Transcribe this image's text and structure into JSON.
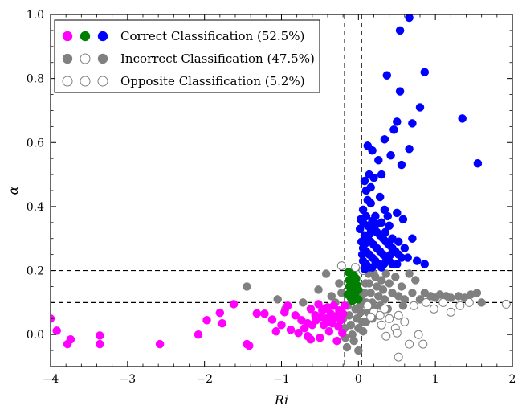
{
  "chart_data": {
    "type": "scatter",
    "xlabel": "Ri",
    "ylabel": "α",
    "xlim": [
      -4,
      2
    ],
    "ylim": [
      -0.1,
      1.0
    ],
    "xticks": [
      "−4",
      "−3",
      "−2",
      "−1",
      "0",
      "1",
      "2"
    ],
    "yticks": [
      "0.0",
      "0.2",
      "0.4",
      "0.6",
      "0.8",
      "1.0"
    ],
    "xtick_values": [
      -4,
      -3,
      -2,
      -1,
      0,
      1,
      2
    ],
    "ytick_values": [
      0.0,
      0.2,
      0.4,
      0.6,
      0.8,
      1.0
    ],
    "reference_lines": {
      "vertical_x": [
        -0.18,
        0.04
      ],
      "horizontal_y": [
        0.1,
        0.2
      ],
      "style": "dashed"
    },
    "legend": {
      "placement": "top-left",
      "entries": [
        {
          "label": "Correct Classification (52.5%)",
          "markers": [
            "magenta-filled",
            "green-filled",
            "blue-filled"
          ]
        },
        {
          "label": "Incorrect Classification (47.5%)",
          "markers": [
            "gray-filled",
            "gray-open",
            "gray-filled"
          ]
        },
        {
          "label": "Opposite Classification (5.2%)",
          "markers": [
            "gray-open",
            "gray-open",
            "gray-open"
          ]
        }
      ]
    },
    "colors": {
      "magenta": "#ff00ff",
      "green": "#007f00",
      "blue": "#0000ff",
      "gray": "#808080"
    },
    "series": [
      {
        "color_key": "magenta",
        "filled": true,
        "points": [
          [
            -4.0,
            0.05
          ],
          [
            -3.92,
            0.012
          ],
          [
            -3.78,
            -0.03
          ],
          [
            -3.74,
            -0.015
          ],
          [
            -3.36,
            -0.003
          ],
          [
            -3.36,
            -0.03
          ],
          [
            -2.58,
            -0.03
          ],
          [
            -2.08,
            0.0
          ],
          [
            -1.97,
            0.045
          ],
          [
            -1.8,
            0.068
          ],
          [
            -1.77,
            0.035
          ],
          [
            -1.62,
            0.095
          ],
          [
            -1.45,
            -0.03
          ],
          [
            -1.42,
            -0.035
          ],
          [
            -1.32,
            0.066
          ],
          [
            -1.22,
            0.065
          ],
          [
            -1.12,
            0.047
          ],
          [
            -1.07,
            0.01
          ],
          [
            -1.0,
            0.03
          ],
          [
            -0.96,
            0.07
          ],
          [
            -0.92,
            0.09
          ],
          [
            -0.88,
            0.015
          ],
          [
            -0.82,
            0.06
          ],
          [
            -0.78,
            0.005
          ],
          [
            -0.74,
            0.045
          ],
          [
            -0.7,
            0.02
          ],
          [
            -0.66,
            -0.005
          ],
          [
            -0.62,
            0.08
          ],
          [
            -0.6,
            0.03
          ],
          [
            -0.56,
            0.06
          ],
          [
            -0.52,
            0.095
          ],
          [
            -0.5,
            -0.01
          ],
          [
            -0.47,
            0.075
          ],
          [
            -0.45,
            0.03
          ],
          [
            -0.42,
            0.05
          ],
          [
            -0.4,
            0.085
          ],
          [
            -0.38,
            0.01
          ],
          [
            -0.36,
            0.065
          ],
          [
            -0.34,
            0.035
          ],
          [
            -0.32,
            0.09
          ],
          [
            -0.3,
            0.055
          ],
          [
            -0.28,
            -0.02
          ],
          [
            -0.26,
            0.025
          ],
          [
            -0.25,
            0.075
          ],
          [
            -0.23,
            0.045
          ],
          [
            -0.21,
            0.005
          ],
          [
            -0.2,
            0.065
          ],
          [
            -0.18,
            0.09
          ],
          [
            -0.55,
            0.045
          ],
          [
            -0.62,
            -0.015
          ],
          [
            -0.48,
            0.055
          ],
          [
            -0.37,
            0.04
          ],
          [
            -0.27,
            0.06
          ],
          [
            -0.44,
            0.08
          ],
          [
            -0.66,
            0.035
          ]
        ]
      },
      {
        "color_key": "green",
        "filled": true,
        "points": [
          [
            -0.13,
            0.195
          ],
          [
            -0.12,
            0.17
          ],
          [
            -0.12,
            0.15
          ],
          [
            -0.1,
            0.135
          ],
          [
            -0.09,
            0.12
          ],
          [
            -0.08,
            0.105
          ],
          [
            -0.06,
            0.185
          ],
          [
            -0.05,
            0.165
          ],
          [
            -0.03,
            0.175
          ],
          [
            -0.02,
            0.155
          ],
          [
            0.0,
            0.14
          ],
          [
            -0.04,
            0.13
          ],
          [
            -0.1,
            0.115
          ],
          [
            -0.07,
            0.145
          ],
          [
            0.0,
            0.11
          ],
          [
            -0.14,
            0.125
          ]
        ]
      },
      {
        "color_key": "blue",
        "filled": true,
        "points": [
          [
            0.66,
            0.99
          ],
          [
            0.54,
            0.95
          ],
          [
            0.37,
            0.81
          ],
          [
            0.86,
            0.82
          ],
          [
            0.54,
            0.76
          ],
          [
            0.8,
            0.71
          ],
          [
            0.7,
            0.66
          ],
          [
            1.35,
            0.675
          ],
          [
            1.55,
            0.535
          ],
          [
            0.5,
            0.665
          ],
          [
            0.46,
            0.64
          ],
          [
            0.34,
            0.61
          ],
          [
            0.66,
            0.58
          ],
          [
            0.12,
            0.59
          ],
          [
            0.18,
            0.575
          ],
          [
            0.26,
            0.545
          ],
          [
            0.42,
            0.56
          ],
          [
            0.56,
            0.53
          ],
          [
            0.14,
            0.5
          ],
          [
            0.2,
            0.49
          ],
          [
            0.08,
            0.48
          ],
          [
            0.16,
            0.46
          ],
          [
            0.3,
            0.5
          ],
          [
            0.34,
            0.39
          ],
          [
            0.5,
            0.38
          ],
          [
            0.58,
            0.36
          ],
          [
            0.38,
            0.37
          ],
          [
            0.28,
            0.43
          ],
          [
            0.1,
            0.45
          ],
          [
            0.12,
            0.42
          ],
          [
            0.06,
            0.39
          ],
          [
            0.16,
            0.41
          ],
          [
            0.22,
            0.37
          ],
          [
            0.3,
            0.35
          ],
          [
            0.4,
            0.34
          ],
          [
            0.44,
            0.3
          ],
          [
            0.52,
            0.29
          ],
          [
            0.6,
            0.27
          ],
          [
            0.7,
            0.3
          ],
          [
            0.64,
            0.24
          ],
          [
            0.76,
            0.23
          ],
          [
            0.86,
            0.22
          ],
          [
            0.1,
            0.37
          ],
          [
            0.06,
            0.35
          ],
          [
            0.12,
            0.34
          ],
          [
            0.16,
            0.33
          ],
          [
            0.2,
            0.33
          ],
          [
            0.24,
            0.32
          ],
          [
            0.28,
            0.31
          ],
          [
            0.32,
            0.3
          ],
          [
            0.36,
            0.29
          ],
          [
            0.4,
            0.28
          ],
          [
            0.44,
            0.27
          ],
          [
            0.48,
            0.26
          ],
          [
            0.52,
            0.25
          ],
          [
            0.56,
            0.24
          ],
          [
            0.08,
            0.31
          ],
          [
            0.12,
            0.3
          ],
          [
            0.16,
            0.29
          ],
          [
            0.2,
            0.28
          ],
          [
            0.24,
            0.27
          ],
          [
            0.28,
            0.26
          ],
          [
            0.32,
            0.25
          ],
          [
            0.36,
            0.24
          ],
          [
            0.4,
            0.23
          ],
          [
            0.44,
            0.22
          ],
          [
            0.06,
            0.27
          ],
          [
            0.1,
            0.26
          ],
          [
            0.14,
            0.25
          ],
          [
            0.18,
            0.24
          ],
          [
            0.22,
            0.23
          ],
          [
            0.26,
            0.22
          ],
          [
            0.3,
            0.21
          ],
          [
            0.06,
            0.23
          ],
          [
            0.1,
            0.22
          ],
          [
            0.14,
            0.21
          ],
          [
            0.18,
            0.21
          ],
          [
            0.08,
            0.205
          ],
          [
            0.05,
            0.25
          ],
          [
            0.04,
            0.29
          ],
          [
            0.02,
            0.33
          ],
          [
            0.03,
            0.36
          ],
          [
            0.18,
            0.355
          ],
          [
            0.24,
            0.345
          ],
          [
            0.15,
            0.315
          ],
          [
            0.09,
            0.285
          ],
          [
            0.35,
            0.32
          ],
          [
            0.42,
            0.25
          ],
          [
            0.5,
            0.22
          ],
          [
            0.33,
            0.22
          ]
        ]
      },
      {
        "color_key": "gray",
        "filled": true,
        "points": [
          [
            -1.45,
            0.15
          ],
          [
            -1.05,
            0.11
          ],
          [
            -0.95,
            0.08
          ],
          [
            -0.72,
            0.1
          ],
          [
            -0.52,
            0.14
          ],
          [
            -0.42,
            0.19
          ],
          [
            -0.35,
            0.12
          ],
          [
            -0.3,
            0.1
          ],
          [
            -0.25,
            0.16
          ],
          [
            -0.22,
            0.13
          ],
          [
            -0.2,
            0.05
          ],
          [
            -0.18,
            0.02
          ],
          [
            -0.17,
            -0.01
          ],
          [
            -0.15,
            -0.04
          ],
          [
            -0.14,
            0.09
          ],
          [
            -0.12,
            0.06
          ],
          [
            -0.1,
            0.03
          ],
          [
            -0.08,
            0.0
          ],
          [
            -0.06,
            -0.02
          ],
          [
            -0.04,
            0.08
          ],
          [
            -0.02,
            0.05
          ],
          [
            0.0,
            0.02
          ],
          [
            0.0,
            -0.05
          ],
          [
            0.02,
            0.09
          ],
          [
            0.03,
            0.07
          ],
          [
            0.05,
            0.04
          ],
          [
            0.06,
            0.01
          ],
          [
            0.08,
            0.13
          ],
          [
            0.1,
            0.1
          ],
          [
            0.12,
            0.07
          ],
          [
            0.14,
            0.16
          ],
          [
            0.16,
            0.13
          ],
          [
            0.18,
            0.1
          ],
          [
            0.2,
            0.08
          ],
          [
            0.22,
            0.18
          ],
          [
            0.24,
            0.15
          ],
          [
            0.26,
            0.12
          ],
          [
            0.28,
            0.09
          ],
          [
            0.3,
            0.17
          ],
          [
            0.32,
            0.14
          ],
          [
            0.34,
            0.11
          ],
          [
            0.36,
            0.19
          ],
          [
            0.4,
            0.16
          ],
          [
            0.44,
            0.13
          ],
          [
            0.48,
            0.18
          ],
          [
            0.52,
            0.12
          ],
          [
            0.56,
            0.15
          ],
          [
            0.6,
            0.11
          ],
          [
            0.66,
            0.19
          ],
          [
            0.7,
            0.13
          ],
          [
            0.74,
            0.17
          ],
          [
            0.8,
            0.11
          ],
          [
            0.86,
            0.13
          ],
          [
            0.94,
            0.12
          ],
          [
            1.0,
            0.115
          ],
          [
            1.06,
            0.125
          ],
          [
            1.14,
            0.12
          ],
          [
            1.2,
            0.115
          ],
          [
            1.3,
            0.12
          ],
          [
            1.38,
            0.115
          ],
          [
            1.46,
            0.125
          ],
          [
            1.54,
            0.13
          ],
          [
            1.6,
            0.1
          ],
          [
            0.04,
            0.12
          ],
          [
            -0.05,
            0.15
          ],
          [
            0.09,
            0.16
          ],
          [
            0.13,
            0.19
          ],
          [
            0.18,
            0.05
          ],
          [
            0.1,
            0.04
          ],
          [
            0.26,
            0.06
          ],
          [
            0.04,
            0.1
          ],
          [
            -0.02,
            0.12
          ],
          [
            0.2,
            0.19
          ],
          [
            0.38,
            0.08
          ],
          [
            0.58,
            0.09
          ]
        ]
      },
      {
        "color_key": "gray",
        "filled": false,
        "points": [
          [
            -0.22,
            0.215
          ],
          [
            -0.04,
            0.21
          ],
          [
            0.06,
            0.2
          ],
          [
            0.12,
            0.09
          ],
          [
            0.2,
            0.07
          ],
          [
            0.28,
            0.06
          ],
          [
            0.34,
            0.08
          ],
          [
            0.4,
            0.05
          ],
          [
            0.48,
            0.02
          ],
          [
            0.52,
            0.06
          ],
          [
            0.6,
            0.04
          ],
          [
            0.66,
            -0.03
          ],
          [
            0.78,
            0.0
          ],
          [
            0.84,
            -0.03
          ],
          [
            0.72,
            0.09
          ],
          [
            0.88,
            0.1
          ],
          [
            0.98,
            0.08
          ],
          [
            1.1,
            0.1
          ],
          [
            1.2,
            0.07
          ],
          [
            1.32,
            0.09
          ],
          [
            1.44,
            0.1
          ],
          [
            1.92,
            0.095
          ],
          [
            0.36,
            -0.005
          ],
          [
            0.52,
            -0.07
          ],
          [
            0.5,
            0.005
          ],
          [
            0.16,
            0.055
          ],
          [
            0.3,
            0.03
          ]
        ]
      }
    ]
  }
}
